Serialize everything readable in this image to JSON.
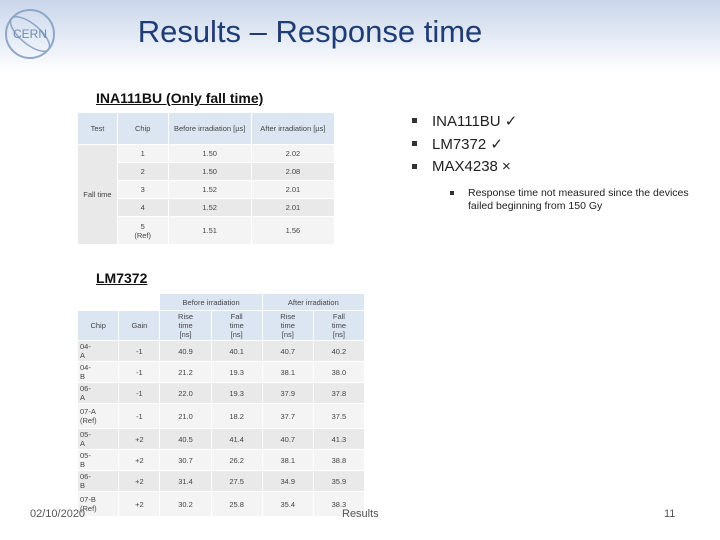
{
  "header": {
    "logo_text": "CERN",
    "title": "Results – Response time"
  },
  "table1": {
    "title": "INA111BU (Only fall time)",
    "columns": [
      "Test",
      "Chip",
      "Before irradiation [µs]",
      "After irradiation [µs]"
    ],
    "group_label": "Fall time",
    "rows": [
      [
        "1",
        "1.50",
        "2.02"
      ],
      [
        "2",
        "1.50",
        "2.08"
      ],
      [
        "3",
        "1.52",
        "2.01"
      ],
      [
        "4",
        "1.52",
        "2.01"
      ],
      [
        "5 (Ref)",
        "1.51",
        "1.56"
      ]
    ]
  },
  "bullets": {
    "items": [
      "INA111BU ✓",
      "LM7372 ✓",
      "MAX4238 ×"
    ],
    "sub_item": "Response time not measured since the devices failed beginning from 150 Gy"
  },
  "table2": {
    "title": "LM7372",
    "groups": [
      "Before irradiation",
      "After irradiation"
    ],
    "columns": [
      "Chip",
      "Gain",
      "Rise time [ns]",
      "Fall time [ns]",
      "Rise time [ns]",
      "Fall time [ns]"
    ],
    "rows": [
      [
        "04-A",
        "-1",
        "40.9",
        "40.1",
        "40.7",
        "40.2"
      ],
      [
        "04-B",
        "-1",
        "21.2",
        "19.3",
        "38.1",
        "38.0"
      ],
      [
        "06-A",
        "-1",
        "22.0",
        "19.3",
        "37.9",
        "37.8"
      ],
      [
        "07-A (Ref)",
        "-1",
        "21.0",
        "18.2",
        "37.7",
        "37.5"
      ],
      [
        "05-A",
        "+2",
        "40.5",
        "41.4",
        "40.7",
        "41.3"
      ],
      [
        "05-B",
        "+2",
        "30.7",
        "26.2",
        "38.1",
        "38.8"
      ],
      [
        "06-B",
        "+2",
        "31.4",
        "27.5",
        "34.9",
        "35.9"
      ],
      [
        "07-B (Ref)",
        "+2",
        "30.2",
        "25.8",
        "35.4",
        "38.3"
      ]
    ]
  },
  "footer": {
    "date": "02/10/2020",
    "section": "Results",
    "page": "11"
  }
}
